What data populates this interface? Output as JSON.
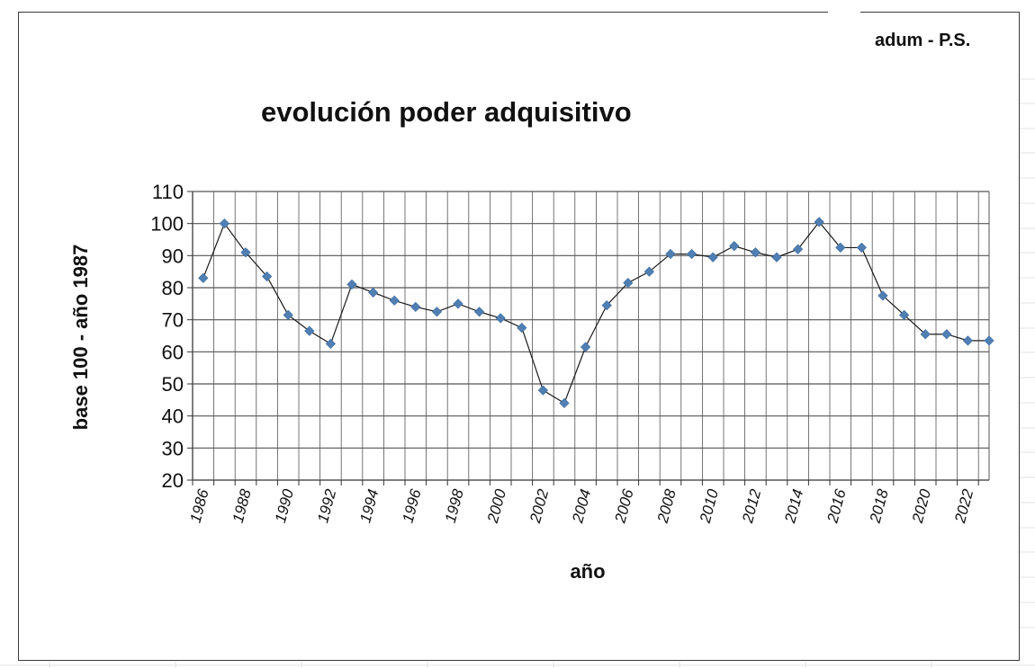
{
  "brand_label": "adum - P.S.",
  "chart_data": {
    "type": "line",
    "title": "evolución poder adquisitivo",
    "xlabel": "año",
    "ylabel": "base 100 - año 1987",
    "ylim": [
      20,
      110
    ],
    "yticks": [
      20,
      30,
      40,
      50,
      60,
      70,
      80,
      90,
      100,
      110
    ],
    "x": [
      1986,
      1987,
      1988,
      1989,
      1990,
      1991,
      1992,
      1993,
      1994,
      1995,
      1996,
      1997,
      1998,
      1999,
      2000,
      2001,
      2002,
      2003,
      2004,
      2005,
      2006,
      2007,
      2008,
      2009,
      2010,
      2011,
      2012,
      2013,
      2014,
      2015,
      2016,
      2017,
      2018,
      2019,
      2020,
      2021,
      2022,
      2023
    ],
    "xtick_labels": [
      "1986",
      "1988",
      "1990",
      "1992",
      "1994",
      "1996",
      "1998",
      "2000",
      "2002",
      "2004",
      "2006",
      "2008",
      "2010",
      "2012",
      "2014",
      "2016",
      "2018",
      "2020",
      "2022"
    ],
    "series": [
      {
        "values": [
          83,
          100,
          91,
          83.5,
          71.5,
          66.5,
          62.5,
          81,
          78.5,
          76,
          74,
          72.5,
          75,
          72.5,
          70.5,
          67.5,
          48,
          44,
          61.5,
          74.5,
          81.5,
          85,
          90.5,
          90.5,
          89.5,
          93,
          91,
          89.5,
          92,
          100.5,
          92.5,
          92.5,
          77.5,
          71.5,
          65.5,
          65.5,
          63.5,
          63.5
        ]
      }
    ],
    "grid": true,
    "legend": "none",
    "colors": {
      "line": "#1a1a1a",
      "marker": "#4f7fb3",
      "grid": "#555555"
    }
  }
}
